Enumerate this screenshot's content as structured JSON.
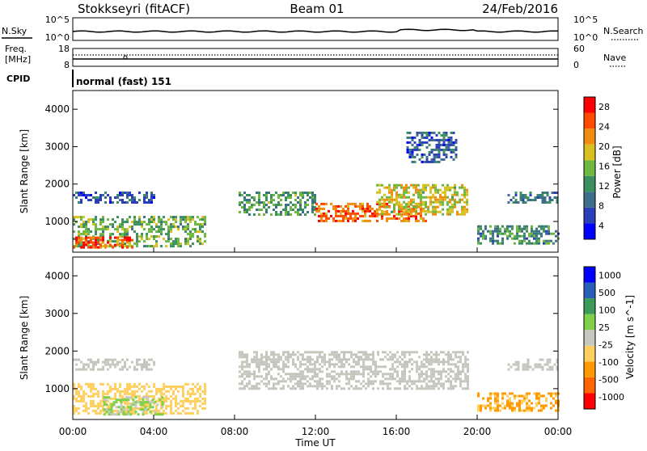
{
  "header": {
    "station": "Stokkseyri (fitACF)",
    "beam": "Beam 01",
    "date": "24/Feb/2016"
  },
  "noise_panel": {
    "left_label": "N.Sky",
    "right_label": "N.Search",
    "left_ticks": [
      "10^5",
      "10^0"
    ],
    "right_ticks": [
      "10^5",
      "10^0"
    ]
  },
  "freq_panel": {
    "left_label_1": "Freq.",
    "left_label_2": "[MHz]",
    "left_ticks": [
      "18",
      "8"
    ],
    "right_label": "Nave",
    "right_ticks": [
      "60",
      "0"
    ]
  },
  "cpid_panel": {
    "label": "CPID",
    "mode": "normal (fast) 151"
  },
  "colors": {
    "power_scale": [
      "#0000ff",
      "#2a3fb8",
      "#3d6e8a",
      "#3c8f5e",
      "#6cb840",
      "#d8c020",
      "#f08c10",
      "#ff4a00",
      "#ff0000"
    ],
    "velocity_scale": [
      "#ff0000",
      "#ff6600",
      "#ff9a00",
      "#ffd060",
      "#c8c8c0",
      "#7fd04a",
      "#3a9a58",
      "#2a5fb8",
      "#0000ff"
    ],
    "ground_scatter": "#c4c4bc"
  },
  "chart_data": [
    {
      "type": "heatmap",
      "panel": "power",
      "title": "",
      "xlabel": "",
      "ylabel": "Slant Range [km]",
      "x_ticks": [
        "00:00",
        "04:00",
        "08:00",
        "12:00",
        "16:00",
        "20:00",
        "00:00"
      ],
      "y_ticks": [
        "1000",
        "2000",
        "3000",
        "4000"
      ],
      "ylim": [
        180,
        4500
      ],
      "colorbar": {
        "label": "Power [dB]",
        "ticks": [
          "4",
          "8",
          "12",
          "16",
          "20",
          "24",
          "28"
        ],
        "range": [
          0,
          30
        ]
      },
      "echo_regions": [
        {
          "t_start": 0.0,
          "t_end": 6.5,
          "range_start": 350,
          "range_end": 1150,
          "power_db": 14
        },
        {
          "t_start": 0.0,
          "t_end": 3.0,
          "range_start": 300,
          "range_end": 600,
          "power_db": 26
        },
        {
          "t_start": 0.0,
          "t_end": 4.0,
          "range_start": 1500,
          "range_end": 1800,
          "power_db": 6
        },
        {
          "t_start": 8.2,
          "t_end": 12.0,
          "range_start": 1200,
          "range_end": 1800,
          "power_db": 12
        },
        {
          "t_start": 12.0,
          "t_end": 17.5,
          "range_start": 1000,
          "range_end": 1500,
          "power_db": 25
        },
        {
          "t_start": 15.0,
          "t_end": 19.5,
          "range_start": 1200,
          "range_end": 2000,
          "power_db": 18
        },
        {
          "t_start": 16.5,
          "t_end": 19.0,
          "range_start": 2600,
          "range_end": 3400,
          "power_db": 6
        },
        {
          "t_start": 20.0,
          "t_end": 24.0,
          "range_start": 400,
          "range_end": 900,
          "power_db": 10
        },
        {
          "t_start": 21.5,
          "t_end": 24.0,
          "range_start": 1500,
          "range_end": 1800,
          "power_db": 8
        }
      ]
    },
    {
      "type": "heatmap",
      "panel": "velocity",
      "title": "",
      "xlabel": "Time UT",
      "ylabel": "Slant Range [km]",
      "x_ticks": [
        "00:00",
        "04:00",
        "08:00",
        "12:00",
        "16:00",
        "20:00",
        "00:00"
      ],
      "y_ticks": [
        "1000",
        "2000",
        "3000",
        "4000"
      ],
      "ylim": [
        180,
        4500
      ],
      "colorbar": {
        "label": "Velocity [m s^-1]",
        "ticks": [
          "1000",
          "500",
          "100",
          "25",
          "-25",
          "-100",
          "-500",
          "-1000"
        ],
        "range": [
          -1000,
          1000
        ]
      },
      "echo_regions": [
        {
          "t_start": 0.0,
          "t_end": 6.5,
          "range_start": 350,
          "range_end": 1150,
          "velocity": -300
        },
        {
          "t_start": 1.5,
          "t_end": 4.5,
          "range_start": 300,
          "range_end": 800,
          "velocity": 150
        },
        {
          "t_start": 0.0,
          "t_end": 4.0,
          "range_start": 1500,
          "range_end": 1800,
          "velocity": 0
        },
        {
          "t_start": 8.2,
          "t_end": 19.5,
          "range_start": 1000,
          "range_end": 2000,
          "velocity": 0
        },
        {
          "t_start": 20.0,
          "t_end": 24.0,
          "range_start": 400,
          "range_end": 900,
          "velocity": -400
        },
        {
          "t_start": 21.5,
          "t_end": 24.0,
          "range_start": 1500,
          "range_end": 1800,
          "velocity": 0
        }
      ]
    }
  ]
}
